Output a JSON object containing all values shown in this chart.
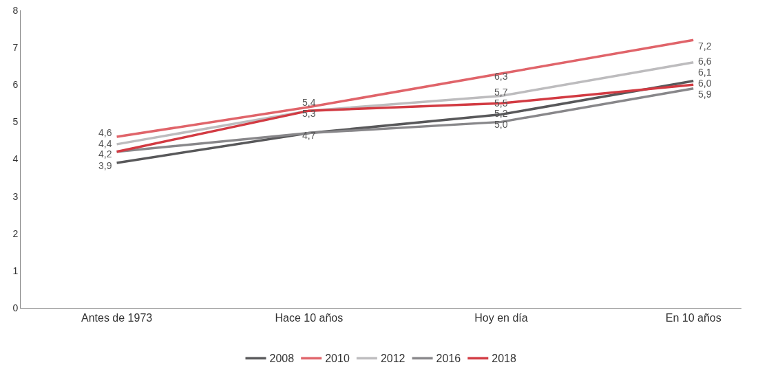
{
  "chart_data": {
    "type": "line",
    "categories": [
      "Antes de 1973",
      "Hace 10 años",
      "Hoy en día",
      "En 10 años"
    ],
    "ylim": [
      0,
      8
    ],
    "yticks": [
      0,
      1,
      2,
      3,
      4,
      5,
      6,
      7,
      8
    ],
    "grid": false,
    "legend": "bottom",
    "marker": "none",
    "line_style": "solid",
    "series": [
      {
        "name": "2008",
        "color": "#58585a",
        "values": [
          3.9,
          4.7,
          5.2,
          6.1
        ],
        "value_labels": [
          "3,9",
          "4,7",
          "5,2",
          "6,1"
        ]
      },
      {
        "name": "2010",
        "color": "#e0646a",
        "values": [
          4.6,
          5.4,
          6.3,
          7.2
        ],
        "value_labels": [
          "4,6",
          "5,4",
          "6,3",
          "7,2"
        ]
      },
      {
        "name": "2012",
        "color": "#bdbcbe",
        "values": [
          4.4,
          5.3,
          5.7,
          6.6
        ],
        "value_labels": [
          "4,4",
          null,
          "5,7",
          "6,6"
        ]
      },
      {
        "name": "2016",
        "color": "#88878a",
        "values": [
          4.2,
          4.7,
          5.0,
          5.9
        ],
        "value_labels": [
          "4,2",
          null,
          "5,0",
          "5,9"
        ]
      },
      {
        "name": "2018",
        "color": "#d23a42",
        "values": [
          4.2,
          5.3,
          5.5,
          6.0
        ],
        "value_labels": [
          null,
          "5,3",
          "5,5",
          "6,0"
        ]
      }
    ]
  }
}
